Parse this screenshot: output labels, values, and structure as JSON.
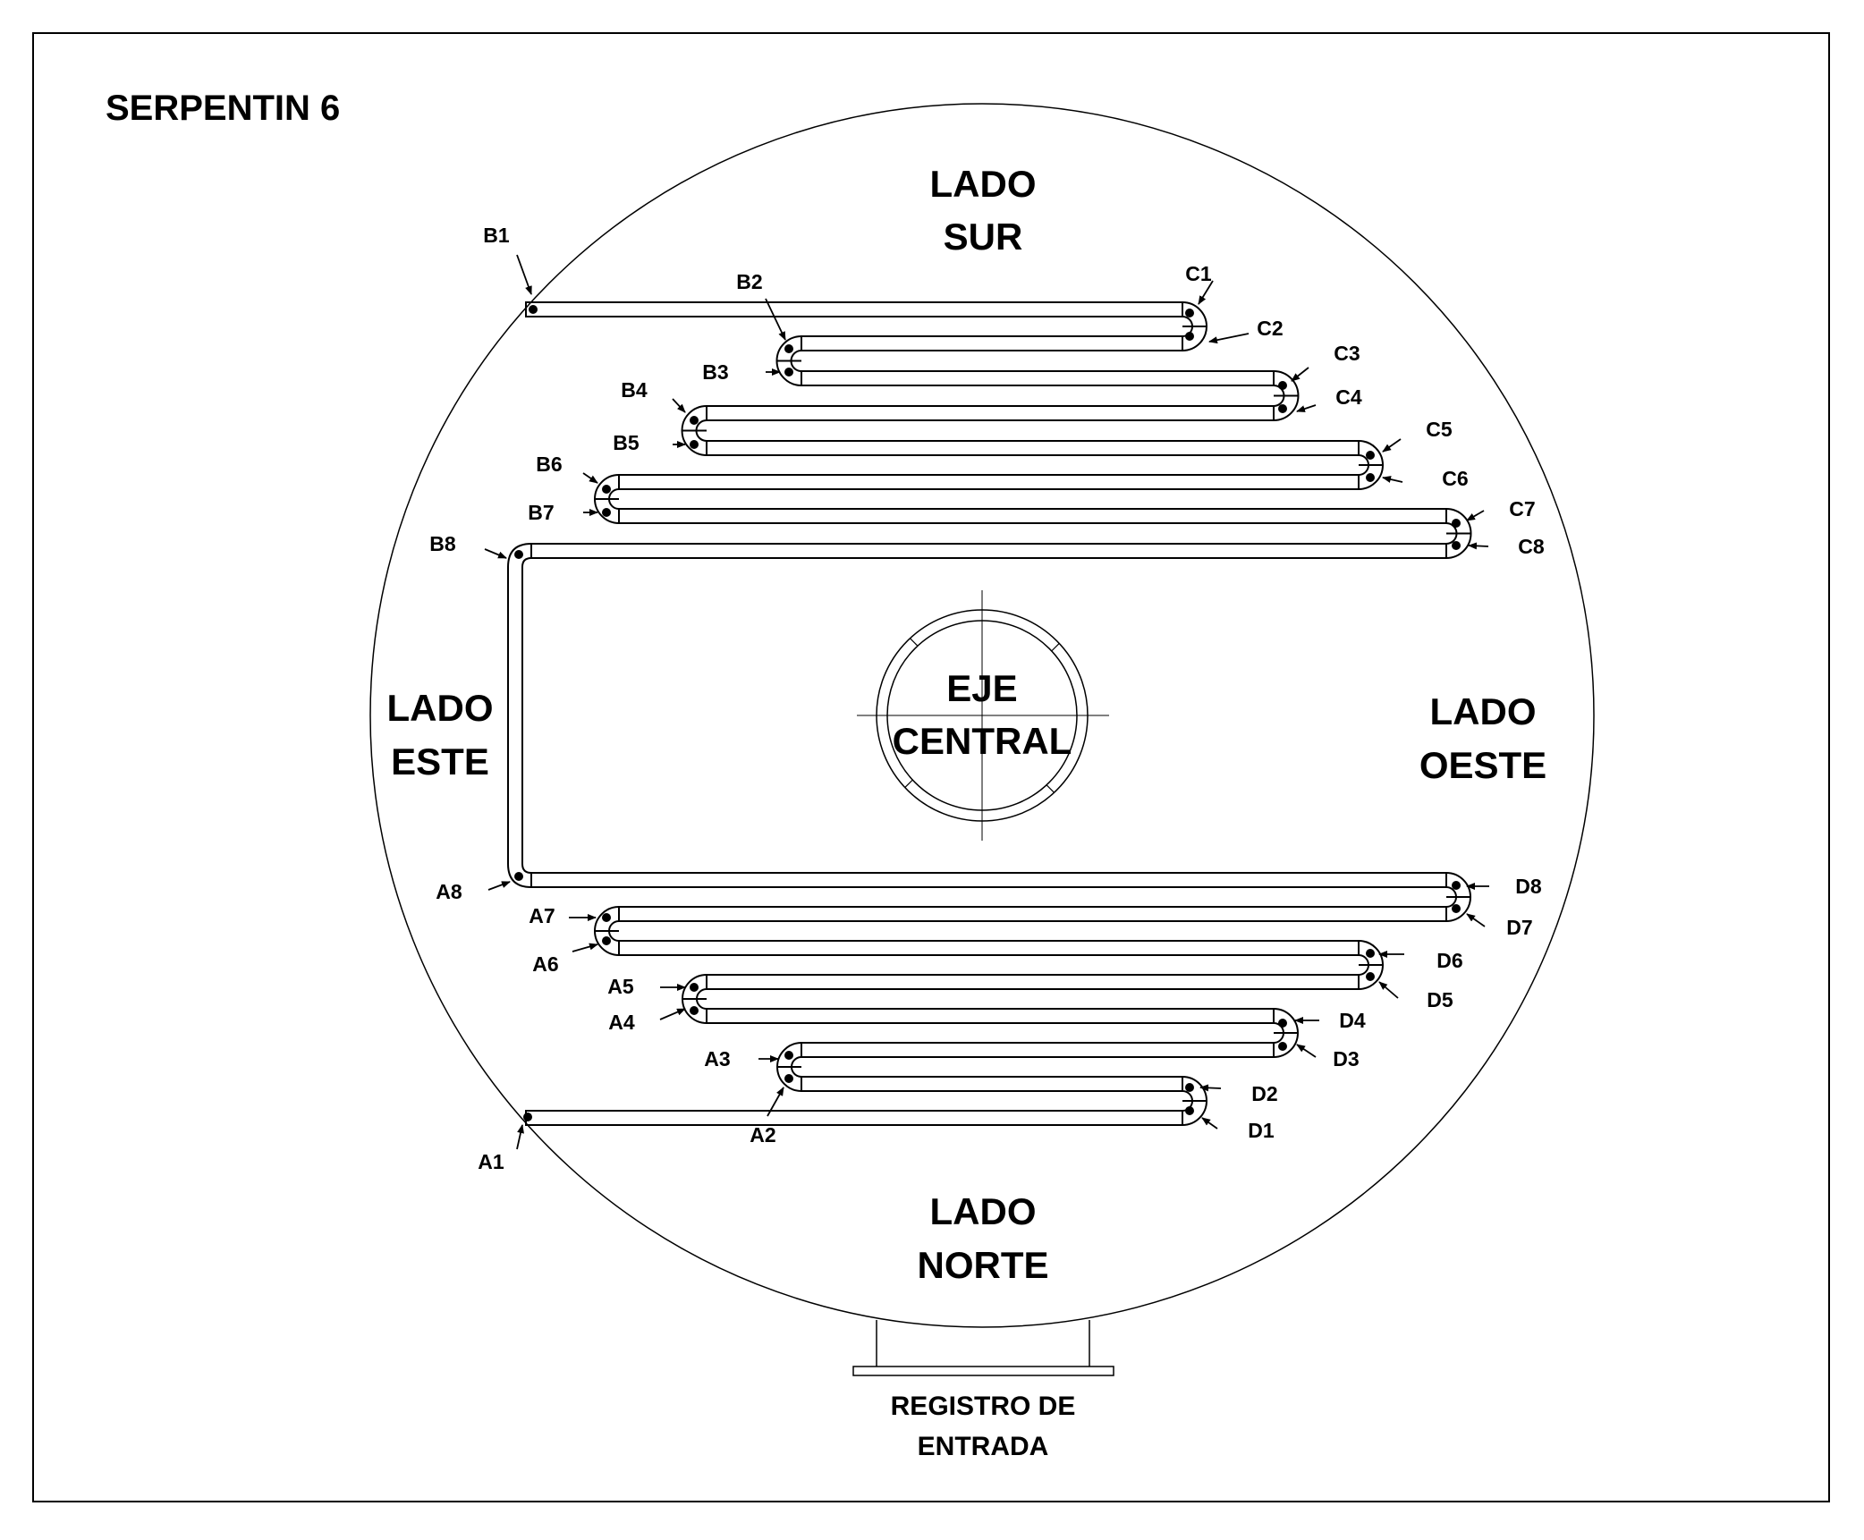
{
  "title": "SERPENTIN 6",
  "sides": {
    "sur": [
      "LADO",
      "SUR"
    ],
    "norte": [
      "LADO",
      "NORTE"
    ],
    "este": [
      "LADO",
      "ESTE"
    ],
    "oeste": [
      "LADO",
      "OESTE"
    ]
  },
  "center": [
    "EJE",
    "CENTRAL"
  ],
  "register": [
    "REGISTRO DE",
    "ENTRADA"
  ],
  "points": {
    "A": [
      "A1",
      "A2",
      "A3",
      "A4",
      "A5",
      "A6",
      "A7",
      "A8"
    ],
    "B": [
      "B1",
      "B2",
      "B3",
      "B4",
      "B5",
      "B6",
      "B7",
      "B8"
    ],
    "C": [
      "C1",
      "C2",
      "C3",
      "C4",
      "C5",
      "C6",
      "C7",
      "C8"
    ],
    "D": [
      "D1",
      "D2",
      "D3",
      "D4",
      "D5",
      "D6",
      "D7",
      "D8"
    ]
  },
  "colors": {
    "line": "#000000",
    "background": "#ffffff"
  }
}
